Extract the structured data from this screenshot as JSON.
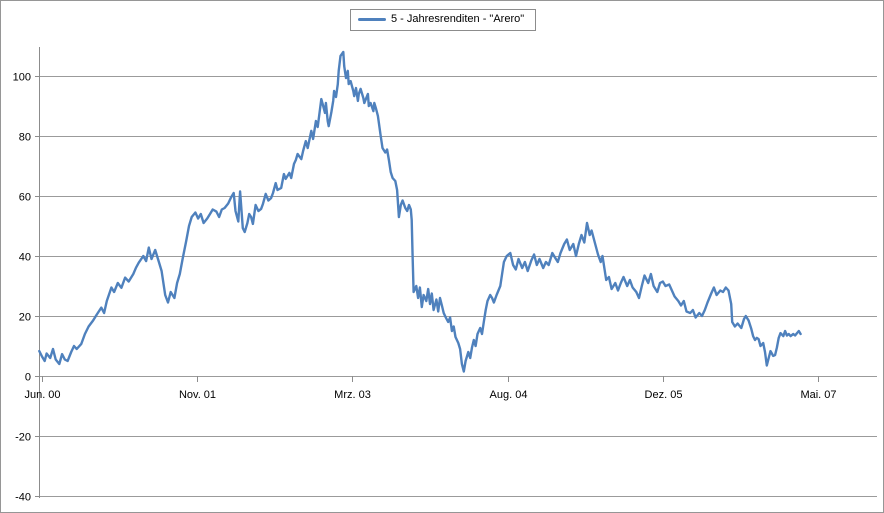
{
  "chart_data": {
    "type": "line",
    "title": "5 - Jahresrenditen - \"Arero\"",
    "legend": "5 - Jahresrenditen - \"Arero\"",
    "legend_position": "top-center",
    "grid": "horizontal",
    "xlabel": "",
    "ylabel": "",
    "ylim": [
      -40,
      110
    ],
    "y_ticks": [
      100,
      80,
      60,
      40,
      20,
      0,
      -20,
      -40
    ],
    "x_unit": "Monate seit Jun. 2000",
    "x_ticks": [
      {
        "m": 0,
        "label": "Jun. 00"
      },
      {
        "m": 17,
        "label": "Nov. 01"
      },
      {
        "m": 34,
        "label": "Mrz. 03"
      },
      {
        "m": 51,
        "label": "Aug. 04"
      },
      {
        "m": 68,
        "label": "Dez. 05"
      },
      {
        "m": 85,
        "label": "Mai. 07"
      }
    ],
    "colors": {
      "accent": "#4f81bd",
      "gridline": "#9b9b9b",
      "axis": "#8c8c8c",
      "text": "#000000",
      "border": "#969696",
      "background": "#ffffff"
    },
    "series": [
      {
        "name": "5 - Jahresrenditen - \"Arero\"",
        "points": [
          [
            -0.3,
            8.3
          ],
          [
            0,
            6.5
          ],
          [
            0.3,
            5
          ],
          [
            0.5,
            7.5
          ],
          [
            0.9,
            6
          ],
          [
            1.2,
            9
          ],
          [
            1.5,
            5.5
          ],
          [
            1.9,
            4
          ],
          [
            2.2,
            7.3
          ],
          [
            2.5,
            5.5
          ],
          [
            2.8,
            5
          ],
          [
            3.2,
            8
          ],
          [
            3.5,
            10
          ],
          [
            3.8,
            9
          ],
          [
            4.3,
            10.7
          ],
          [
            4.7,
            14
          ],
          [
            5.1,
            16.5
          ],
          [
            5.6,
            18.5
          ],
          [
            6,
            20.5
          ],
          [
            6.5,
            22.8
          ],
          [
            6.8,
            21
          ],
          [
            7.1,
            25
          ],
          [
            7.6,
            29.5
          ],
          [
            7.9,
            28
          ],
          [
            8.3,
            31
          ],
          [
            8.7,
            29.4
          ],
          [
            9.1,
            32.8
          ],
          [
            9.5,
            31.5
          ],
          [
            10,
            34
          ],
          [
            10.3,
            36.1
          ],
          [
            10.6,
            37.8
          ],
          [
            11.1,
            40
          ],
          [
            11.4,
            38.3
          ],
          [
            11.7,
            42.8
          ],
          [
            12,
            39
          ],
          [
            12.4,
            42
          ],
          [
            12.8,
            38
          ],
          [
            13.1,
            35
          ],
          [
            13.5,
            27
          ],
          [
            13.8,
            24.5
          ],
          [
            14.1,
            28
          ],
          [
            14.5,
            26
          ],
          [
            14.8,
            31
          ],
          [
            15.1,
            34
          ],
          [
            15.4,
            39
          ],
          [
            15.8,
            45
          ],
          [
            16.1,
            50
          ],
          [
            16.4,
            53
          ],
          [
            16.8,
            54.5
          ],
          [
            17.1,
            52.5
          ],
          [
            17.4,
            54
          ],
          [
            17.7,
            51
          ],
          [
            18.1,
            52.5
          ],
          [
            18.4,
            54
          ],
          [
            18.7,
            55.5
          ],
          [
            19.1,
            54.8
          ],
          [
            19.4,
            53
          ],
          [
            19.7,
            55.5
          ],
          [
            20,
            56
          ],
          [
            20.4,
            57.5
          ],
          [
            20.7,
            59.5
          ],
          [
            21,
            61
          ],
          [
            21.2,
            55
          ],
          [
            21.5,
            51.5
          ],
          [
            21.7,
            61.5
          ],
          [
            22,
            49.3
          ],
          [
            22.2,
            48
          ],
          [
            22.5,
            51
          ],
          [
            22.7,
            54
          ],
          [
            22.9,
            53
          ],
          [
            23.1,
            50.7
          ],
          [
            23.4,
            57
          ],
          [
            23.7,
            55
          ],
          [
            24,
            55.7
          ],
          [
            24.2,
            57.3
          ],
          [
            24.5,
            60.7
          ],
          [
            24.8,
            58.5
          ],
          [
            25.1,
            59.3
          ],
          [
            25.3,
            61
          ],
          [
            25.6,
            64.3
          ],
          [
            25.8,
            62
          ],
          [
            26.2,
            62.7
          ],
          [
            26.5,
            67.3
          ],
          [
            26.7,
            65.7
          ],
          [
            27.1,
            67.7
          ],
          [
            27.3,
            66
          ],
          [
            27.6,
            70.7
          ],
          [
            27.8,
            72
          ],
          [
            28,
            74
          ],
          [
            28.4,
            72.3
          ],
          [
            28.6,
            75
          ],
          [
            28.9,
            78.3
          ],
          [
            29.1,
            76
          ],
          [
            29.5,
            81.7
          ],
          [
            29.7,
            79
          ],
          [
            30,
            85
          ],
          [
            30.2,
            83
          ],
          [
            30.6,
            92.3
          ],
          [
            30.8,
            90
          ],
          [
            31,
            87.7
          ],
          [
            31.1,
            91
          ],
          [
            31.3,
            85
          ],
          [
            31.4,
            83.3
          ],
          [
            31.7,
            88
          ],
          [
            31.9,
            91.7
          ],
          [
            32,
            95
          ],
          [
            32.2,
            93
          ],
          [
            32.4,
            97.3
          ],
          [
            32.5,
            101.7
          ],
          [
            32.7,
            106.7
          ],
          [
            33,
            108
          ],
          [
            33.1,
            103.3
          ],
          [
            33.3,
            99.3
          ],
          [
            33.5,
            101.7
          ],
          [
            33.6,
            97.3
          ],
          [
            33.8,
            98.3
          ],
          [
            34.1,
            95
          ],
          [
            34.2,
            93.3
          ],
          [
            34.4,
            96
          ],
          [
            34.6,
            91.7
          ],
          [
            34.7,
            94
          ],
          [
            34.9,
            95.7
          ],
          [
            35.2,
            92.7
          ],
          [
            35.3,
            91
          ],
          [
            35.5,
            92.5
          ],
          [
            35.7,
            94
          ],
          [
            35.8,
            90
          ],
          [
            36,
            91
          ],
          [
            36.3,
            88.3
          ],
          [
            36.4,
            91
          ],
          [
            36.6,
            89
          ],
          [
            36.8,
            86.7
          ],
          [
            36.9,
            84.3
          ],
          [
            37.1,
            80
          ],
          [
            37.3,
            76
          ],
          [
            37.6,
            74.5
          ],
          [
            37.8,
            75.5
          ],
          [
            38,
            72
          ],
          [
            38.2,
            68
          ],
          [
            38.4,
            66
          ],
          [
            38.7,
            65
          ],
          [
            38.9,
            62
          ],
          [
            39.1,
            53
          ],
          [
            39.3,
            57
          ],
          [
            39.5,
            58.5
          ],
          [
            39.8,
            56
          ],
          [
            40,
            55
          ],
          [
            40.2,
            57
          ],
          [
            40.4,
            55.5
          ],
          [
            40.5,
            52
          ],
          [
            40.6,
            40
          ],
          [
            40.7,
            28
          ],
          [
            41,
            30
          ],
          [
            41.2,
            26
          ],
          [
            41.4,
            29.5
          ],
          [
            41.6,
            23
          ],
          [
            41.8,
            27
          ],
          [
            42.1,
            25
          ],
          [
            42.3,
            29
          ],
          [
            42.5,
            24
          ],
          [
            42.7,
            27.5
          ],
          [
            42.9,
            22
          ],
          [
            43.2,
            25.5
          ],
          [
            43.4,
            21.5
          ],
          [
            43.6,
            26
          ],
          [
            43.8,
            23.5
          ],
          [
            44,
            21
          ],
          [
            44.2,
            19.7
          ],
          [
            44.5,
            18
          ],
          [
            44.7,
            19.5
          ],
          [
            44.9,
            15
          ],
          [
            45.1,
            16.5
          ],
          [
            45.3,
            13
          ],
          [
            45.6,
            11
          ],
          [
            45.8,
            9
          ],
          [
            46,
            4
          ],
          [
            46.2,
            1.5
          ],
          [
            46.4,
            5
          ],
          [
            46.7,
            8
          ],
          [
            46.9,
            6
          ],
          [
            47.1,
            9.5
          ],
          [
            47.3,
            12
          ],
          [
            47.5,
            10
          ],
          [
            47.7,
            14
          ],
          [
            48,
            16
          ],
          [
            48.2,
            14
          ],
          [
            48.4,
            18
          ],
          [
            48.6,
            22
          ],
          [
            48.8,
            25
          ],
          [
            49.1,
            27
          ],
          [
            49.3,
            26
          ],
          [
            49.5,
            24.5
          ],
          [
            49.8,
            27
          ],
          [
            50.2,
            30
          ],
          [
            50.4,
            34
          ],
          [
            50.6,
            38
          ],
          [
            50.9,
            40
          ],
          [
            51.3,
            41
          ],
          [
            51.6,
            37
          ],
          [
            51.9,
            35.5
          ],
          [
            52.2,
            39
          ],
          [
            52.6,
            36
          ],
          [
            52.9,
            38
          ],
          [
            53.2,
            35
          ],
          [
            53.6,
            38.5
          ],
          [
            53.9,
            40.5
          ],
          [
            54.2,
            37
          ],
          [
            54.5,
            39
          ],
          [
            54.9,
            36
          ],
          [
            55.2,
            38
          ],
          [
            55.5,
            37
          ],
          [
            55.9,
            41
          ],
          [
            56.2,
            39.5
          ],
          [
            56.5,
            38
          ],
          [
            56.8,
            41
          ],
          [
            57.2,
            44
          ],
          [
            57.5,
            45.5
          ],
          [
            57.8,
            42
          ],
          [
            58.2,
            44
          ],
          [
            58.5,
            40
          ],
          [
            58.8,
            44
          ],
          [
            59.1,
            47
          ],
          [
            59.4,
            44.5
          ],
          [
            59.7,
            51
          ],
          [
            60,
            47
          ],
          [
            60.2,
            48.5
          ],
          [
            60.6,
            44
          ],
          [
            60.9,
            40.5
          ],
          [
            61.2,
            38
          ],
          [
            61.4,
            40
          ],
          [
            61.8,
            32
          ],
          [
            62.1,
            33
          ],
          [
            62.4,
            29
          ],
          [
            62.8,
            31
          ],
          [
            63.1,
            28.5
          ],
          [
            63.4,
            31
          ],
          [
            63.7,
            33
          ],
          [
            64.1,
            30
          ],
          [
            64.4,
            32
          ],
          [
            64.7,
            29.5
          ],
          [
            65.1,
            28
          ],
          [
            65.4,
            26
          ],
          [
            65.7,
            30
          ],
          [
            66,
            33.5
          ],
          [
            66.4,
            31
          ],
          [
            66.7,
            34
          ],
          [
            67,
            30
          ],
          [
            67.4,
            28
          ],
          [
            67.7,
            31
          ],
          [
            68,
            31.5
          ],
          [
            68.3,
            30
          ],
          [
            68.7,
            30.5
          ],
          [
            69,
            28.5
          ],
          [
            69.3,
            26.5
          ],
          [
            69.7,
            25
          ],
          [
            70,
            23.5
          ],
          [
            70.3,
            25
          ],
          [
            70.6,
            21.5
          ],
          [
            71,
            21
          ],
          [
            71.3,
            22
          ],
          [
            71.6,
            19.5
          ],
          [
            72,
            21
          ],
          [
            72.3,
            20
          ],
          [
            72.6,
            22
          ],
          [
            72.9,
            24.5
          ],
          [
            73.3,
            27.5
          ],
          [
            73.6,
            29.5
          ],
          [
            73.9,
            27
          ],
          [
            74.3,
            28.5
          ],
          [
            74.6,
            28
          ],
          [
            74.9,
            29.5
          ],
          [
            75.2,
            28.5
          ],
          [
            75.5,
            24
          ],
          [
            75.6,
            18
          ],
          [
            75.9,
            16.5
          ],
          [
            76.2,
            17.5
          ],
          [
            76.6,
            16
          ],
          [
            76.9,
            19
          ],
          [
            77.1,
            20
          ],
          [
            77.4,
            18.5
          ],
          [
            77.7,
            15.7
          ],
          [
            77.9,
            13.3
          ],
          [
            78.1,
            12
          ],
          [
            78.3,
            12.7
          ],
          [
            78.5,
            12.3
          ],
          [
            78.7,
            10
          ],
          [
            79,
            11
          ],
          [
            79.2,
            8
          ],
          [
            79.4,
            3.5
          ],
          [
            79.6,
            6
          ],
          [
            79.8,
            8.3
          ],
          [
            80.1,
            6.7
          ],
          [
            80.3,
            7
          ],
          [
            80.5,
            9.5
          ],
          [
            80.7,
            12.7
          ],
          [
            80.9,
            14.3
          ],
          [
            81.2,
            13.3
          ],
          [
            81.4,
            15
          ],
          [
            81.6,
            13.5
          ],
          [
            81.8,
            14
          ],
          [
            82,
            13.3
          ],
          [
            82.3,
            14
          ],
          [
            82.5,
            13.5
          ],
          [
            82.7,
            14.3
          ],
          [
            82.9,
            15
          ],
          [
            83.1,
            14
          ]
        ]
      }
    ]
  }
}
